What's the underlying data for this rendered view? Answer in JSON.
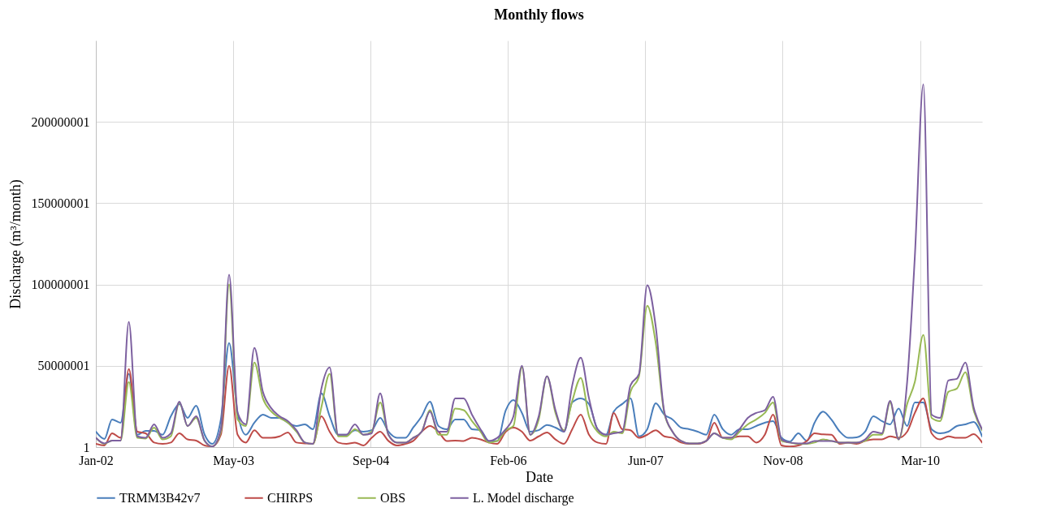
{
  "chart_data": {
    "type": "line",
    "title": "Monthly flows",
    "xlabel": "Date",
    "ylabel": "Discharge (m³/month)",
    "x": [
      "2002-01",
      "2002-02",
      "2002-03",
      "2002-04",
      "2002-05",
      "2002-06",
      "2002-07",
      "2002-08",
      "2002-09",
      "2002-10",
      "2002-11",
      "2002-12",
      "2003-01",
      "2003-02",
      "2003-03",
      "2003-04",
      "2003-05",
      "2003-06",
      "2003-07",
      "2003-08",
      "2003-09",
      "2003-10",
      "2003-11",
      "2003-12",
      "2004-01",
      "2004-02",
      "2004-03",
      "2004-04",
      "2004-05",
      "2004-06",
      "2004-07",
      "2004-08",
      "2004-09",
      "2004-10",
      "2004-11",
      "2004-12",
      "2005-01",
      "2005-02",
      "2005-03",
      "2005-04",
      "2005-05",
      "2005-06",
      "2005-07",
      "2005-08",
      "2005-09",
      "2005-10",
      "2005-11",
      "2005-12",
      "2006-01",
      "2006-02",
      "2006-03",
      "2006-04",
      "2006-05",
      "2006-06",
      "2006-07",
      "2006-08",
      "2006-09",
      "2006-10",
      "2006-11",
      "2006-12",
      "2007-01",
      "2007-02",
      "2007-03",
      "2007-04",
      "2007-05",
      "2007-06",
      "2007-07",
      "2007-08",
      "2007-09",
      "2007-10",
      "2007-11",
      "2007-12",
      "2008-01",
      "2008-02",
      "2008-03",
      "2008-04",
      "2008-05",
      "2008-06",
      "2008-07",
      "2008-08",
      "2008-09",
      "2008-10",
      "2008-11",
      "2008-12",
      "2009-01",
      "2009-02",
      "2009-03",
      "2009-04",
      "2009-05",
      "2009-06",
      "2009-07",
      "2009-08",
      "2009-09",
      "2009-10",
      "2009-11",
      "2009-12",
      "2010-01",
      "2010-02",
      "2010-03",
      "2010-04",
      "2010-05",
      "2010-06",
      "2010-07",
      "2010-08",
      "2010-09",
      "2010-10",
      "2010-11"
    ],
    "series": [
      {
        "name": "TRMM3B42v7",
        "color": "#4a7ebb",
        "values": [
          9500000.0,
          5000000.0,
          17000000.0,
          15000000.0,
          45000000.0,
          7600000.0,
          10000000.0,
          10000000.0,
          7600000.0,
          19000000.0,
          26500000.0,
          18000000.0,
          25500000.0,
          7600000.0,
          2000000.0,
          17000000.0,
          64000000.0,
          21000000.0,
          7600000.0,
          15000000.0,
          20000000.0,
          18000000.0,
          18000000.0,
          15000000.0,
          13000000.0,
          14000000.0,
          11000000.0,
          33000000.0,
          19000000.0,
          7600000.0,
          7600000.0,
          10400000.0,
          9500000.0,
          10400000.0,
          18000000.0,
          9500000.0,
          5700000.0,
          5700000.0,
          12000000.0,
          19000000.0,
          28000000.0,
          13000000.0,
          11000000.0,
          17000000.0,
          17000000.0,
          11000000.0,
          10400000.0,
          3800000.0,
          3800000.0,
          22700000.0,
          29000000.0,
          21000000.0,
          9500000.0,
          10400000.0,
          13600000.0,
          12000000.0,
          9500000.0,
          27500000.0,
          30000000.0,
          26500000.0,
          11000000.0,
          7600000.0,
          21800000.0,
          26500000.0,
          30000000.0,
          6600000.0,
          11000000.0,
          27000000.0,
          20000000.0,
          17000000.0,
          12000000.0,
          11000000.0,
          9500000.0,
          7600000.0,
          20000000.0,
          11000000.0,
          7600000.0,
          11000000.0,
          11000000.0,
          13000000.0,
          15000000.0,
          16000000.0,
          5700000.0,
          3400000.0,
          8500000.0,
          3800000.0,
          15000000.0,
          21800000.0,
          17000000.0,
          9500000.0,
          5700000.0,
          6000000.0,
          9500000.0,
          19000000.0,
          16000000.0,
          14000000.0,
          23700000.0,
          13000000.0,
          27500000.0,
          27500000.0,
          11000000.0,
          8500000.0,
          9500000.0,
          13000000.0,
          14000000.0,
          15500000.0,
          6600000.0
        ]
      },
      {
        "name": "CHIRPS",
        "color": "#be4b48",
        "values": [
          2000000.0,
          1000000.0,
          8500000.0,
          5700000.0,
          48000000.0,
          9500000.0,
          8500000.0,
          2800000.0,
          2000000.0,
          2800000.0,
          8500000.0,
          4700000.0,
          4000000.0,
          1000000.0,
          400000.0,
          7600000.0,
          50000000.0,
          7600000.0,
          2800000.0,
          10400000.0,
          5700000.0,
          5700000.0,
          6600000.0,
          9000000.0,
          2800000.0,
          2300000.0,
          2000000.0,
          19000000.0,
          9500000.0,
          2800000.0,
          2000000.0,
          2800000.0,
          1000000.0,
          5700000.0,
          9500000.0,
          3800000.0,
          1000000.0,
          2000000.0,
          3800000.0,
          9500000.0,
          13000000.0,
          9500000.0,
          3800000.0,
          4000000.0,
          3800000.0,
          5700000.0,
          4700000.0,
          2800000.0,
          2000000.0,
          9500000.0,
          12000000.0,
          9500000.0,
          4000000.0,
          6600000.0,
          9000000.0,
          4700000.0,
          2000000.0,
          11000000.0,
          20000000.0,
          7600000.0,
          2800000.0,
          2000000.0,
          21000000.0,
          11000000.0,
          10400000.0,
          5700000.0,
          7600000.0,
          10400000.0,
          6600000.0,
          5700000.0,
          2800000.0,
          2000000.0,
          2000000.0,
          3800000.0,
          15000000.0,
          5700000.0,
          5700000.0,
          6600000.0,
          6600000.0,
          2800000.0,
          7600000.0,
          20000000.0,
          1000000.0,
          400000.0,
          1000000.0,
          3800000.0,
          8500000.0,
          7800000.0,
          7600000.0,
          2000000.0,
          2800000.0,
          2000000.0,
          3800000.0,
          4700000.0,
          4700000.0,
          6600000.0,
          5700000.0,
          9500000.0,
          21000000.0,
          30000000.0,
          8500000.0,
          4700000.0,
          6600000.0,
          5700000.0,
          5700000.0,
          8000000.0,
          2800000.0
        ]
      },
      {
        "name": "OBS",
        "color": "#98b954",
        "values": [
          5700000.0,
          2000000.0,
          4000000.0,
          4000000.0,
          40000000.0,
          5700000.0,
          5300000.0,
          12000000.0,
          4700000.0,
          6600000.0,
          27500000.0,
          13000000.0,
          18000000.0,
          3800000.0,
          400000.0,
          9500000.0,
          100000000.0,
          17000000.0,
          13000000.0,
          52000000.0,
          30000000.0,
          22000000.0,
          18000000.0,
          15000000.0,
          9500000.0,
          2800000.0,
          2000000.0,
          24600000.0,
          45000000.0,
          6600000.0,
          6600000.0,
          11000000.0,
          7600000.0,
          9500000.0,
          27500000.0,
          7600000.0,
          2800000.0,
          2800000.0,
          5700000.0,
          9500000.0,
          22700000.0,
          7600000.0,
          7600000.0,
          23700000.0,
          22700000.0,
          16000000.0,
          9500000.0,
          2800000.0,
          3800000.0,
          10400000.0,
          13000000.0,
          49000000.0,
          7600000.0,
          17000000.0,
          43600000.0,
          21000000.0,
          10400000.0,
          28400000.0,
          42600000.0,
          19000000.0,
          9500000.0,
          6600000.0,
          9500000.0,
          8500000.0,
          34000000.0,
          43600000.0,
          87000000.0,
          64000000.0,
          21000000.0,
          9500000.0,
          3800000.0,
          2300000.0,
          2300000.0,
          3800000.0,
          8500000.0,
          5700000.0,
          4700000.0,
          9500000.0,
          14000000.0,
          17000000.0,
          21000000.0,
          27500000.0,
          3800000.0,
          2800000.0,
          2000000.0,
          2000000.0,
          2800000.0,
          4700000.0,
          3800000.0,
          2800000.0,
          2800000.0,
          2800000.0,
          3800000.0,
          7600000.0,
          7600000.0,
          27500000.0,
          4700000.0,
          26500000.0,
          40000000.0,
          69000000.0,
          18000000.0,
          16000000.0,
          34000000.0,
          36000000.0,
          46000000.0,
          22700000.0,
          10400000.0
        ]
      },
      {
        "name": "L. Model discharge",
        "color": "#7d60a0",
        "values": [
          5700000.0,
          2300000.0,
          4000000.0,
          4000000.0,
          77000000.0,
          6600000.0,
          5700000.0,
          14000000.0,
          5700000.0,
          8500000.0,
          28000000.0,
          13000000.0,
          19000000.0,
          4000000.0,
          400000.0,
          11000000.0,
          106000000.0,
          21000000.0,
          14000000.0,
          61000000.0,
          34000000.0,
          24000000.0,
          19000000.0,
          16000000.0,
          10400000.0,
          2800000.0,
          2000000.0,
          36000000.0,
          49000000.0,
          7600000.0,
          7600000.0,
          14000000.0,
          7600000.0,
          8500000.0,
          33000000.0,
          7600000.0,
          2800000.0,
          2800000.0,
          5700000.0,
          9500000.0,
          21800000.0,
          9500000.0,
          9500000.0,
          30000000.0,
          30000000.0,
          20000000.0,
          11000000.0,
          3800000.0,
          5700000.0,
          11000000.0,
          19000000.0,
          50000000.0,
          7600000.0,
          19000000.0,
          43600000.0,
          22700000.0,
          9500000.0,
          38000000.0,
          55000000.0,
          30000000.0,
          11000000.0,
          7600000.0,
          8500000.0,
          9500000.0,
          38000000.0,
          45000000.0,
          99500000.0,
          74000000.0,
          21800000.0,
          9500000.0,
          3800000.0,
          2300000.0,
          2300000.0,
          3800000.0,
          8500000.0,
          5700000.0,
          5700000.0,
          11000000.0,
          18000000.0,
          21000000.0,
          22700000.0,
          31000000.0,
          4700000.0,
          2800000.0,
          2300000.0,
          2300000.0,
          3800000.0,
          3800000.0,
          3800000.0,
          2800000.0,
          2800000.0,
          2800000.0,
          4700000.0,
          9500000.0,
          8500000.0,
          28400000.0,
          4700000.0,
          40000000.0,
          117000000.0,
          223000000.0,
          20000000.0,
          18000000.0,
          41000000.0,
          42000000.0,
          52000000.0,
          24600000.0,
          11000000.0
        ]
      }
    ],
    "xlim": [
      "2002-01-01",
      "2010-11-01"
    ],
    "xticks": [
      {
        "value": "2002-01-01",
        "label": "Jan-02"
      },
      {
        "value": "2003-05-16",
        "label": "May-03"
      },
      {
        "value": "2004-09-27",
        "label": "Sep-04"
      },
      {
        "value": "2006-02-09",
        "label": "Feb-06"
      },
      {
        "value": "2007-06-24",
        "label": "Jun-07"
      },
      {
        "value": "2008-11-05",
        "label": "Nov-08"
      },
      {
        "value": "2010-03-20",
        "label": "Mar-10"
      }
    ],
    "ylim": [
      1,
      250000001
    ],
    "yticks": [
      1,
      50000001,
      100000001,
      150000001,
      200000001
    ],
    "grid": true,
    "legend": "bottom",
    "line_style": "solid"
  }
}
